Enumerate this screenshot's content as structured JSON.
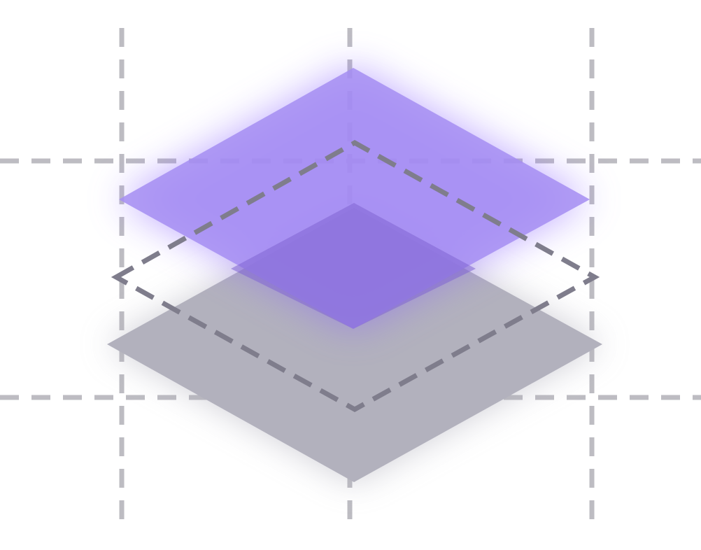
{
  "illustration": {
    "icon": "stacked-layers-icon",
    "colors": {
      "background": "#ffffff",
      "guide_lines": "#bdbcc2",
      "top_layer": "#a58ef2",
      "top_layer_overlap": "#8b72d8",
      "bottom_layer": "#b2b1bd",
      "dashed_outline": "#7f7d8c",
      "glow": "#8a63ff"
    },
    "layers": [
      {
        "name": "top-layer",
        "style": "solid-translucent-purple"
      },
      {
        "name": "middle-layer",
        "style": "dashed-outline"
      },
      {
        "name": "bottom-layer",
        "style": "solid-gray"
      }
    ]
  }
}
